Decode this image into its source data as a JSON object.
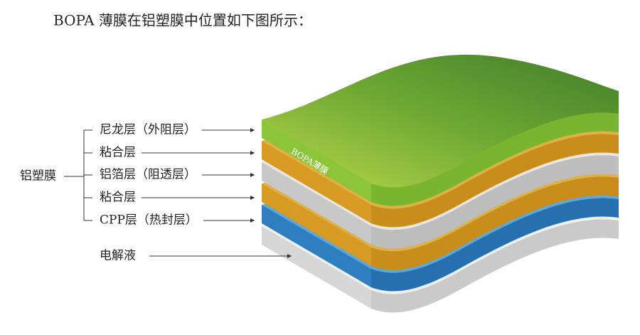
{
  "header": {
    "title": "BOPA 薄膜在铝塑膜中位置如下图所示："
  },
  "diagram": {
    "group_label": "铝塑膜",
    "layers": [
      {
        "label": "尼龙层（外阻层）"
      },
      {
        "label": "粘合层"
      },
      {
        "label": "铝箔层（阻透层）"
      },
      {
        "label": "粘合层"
      },
      {
        "label": "CPP层（热封层）"
      }
    ],
    "electrolyte": "电解液",
    "film_label": "BOPA薄膜"
  }
}
